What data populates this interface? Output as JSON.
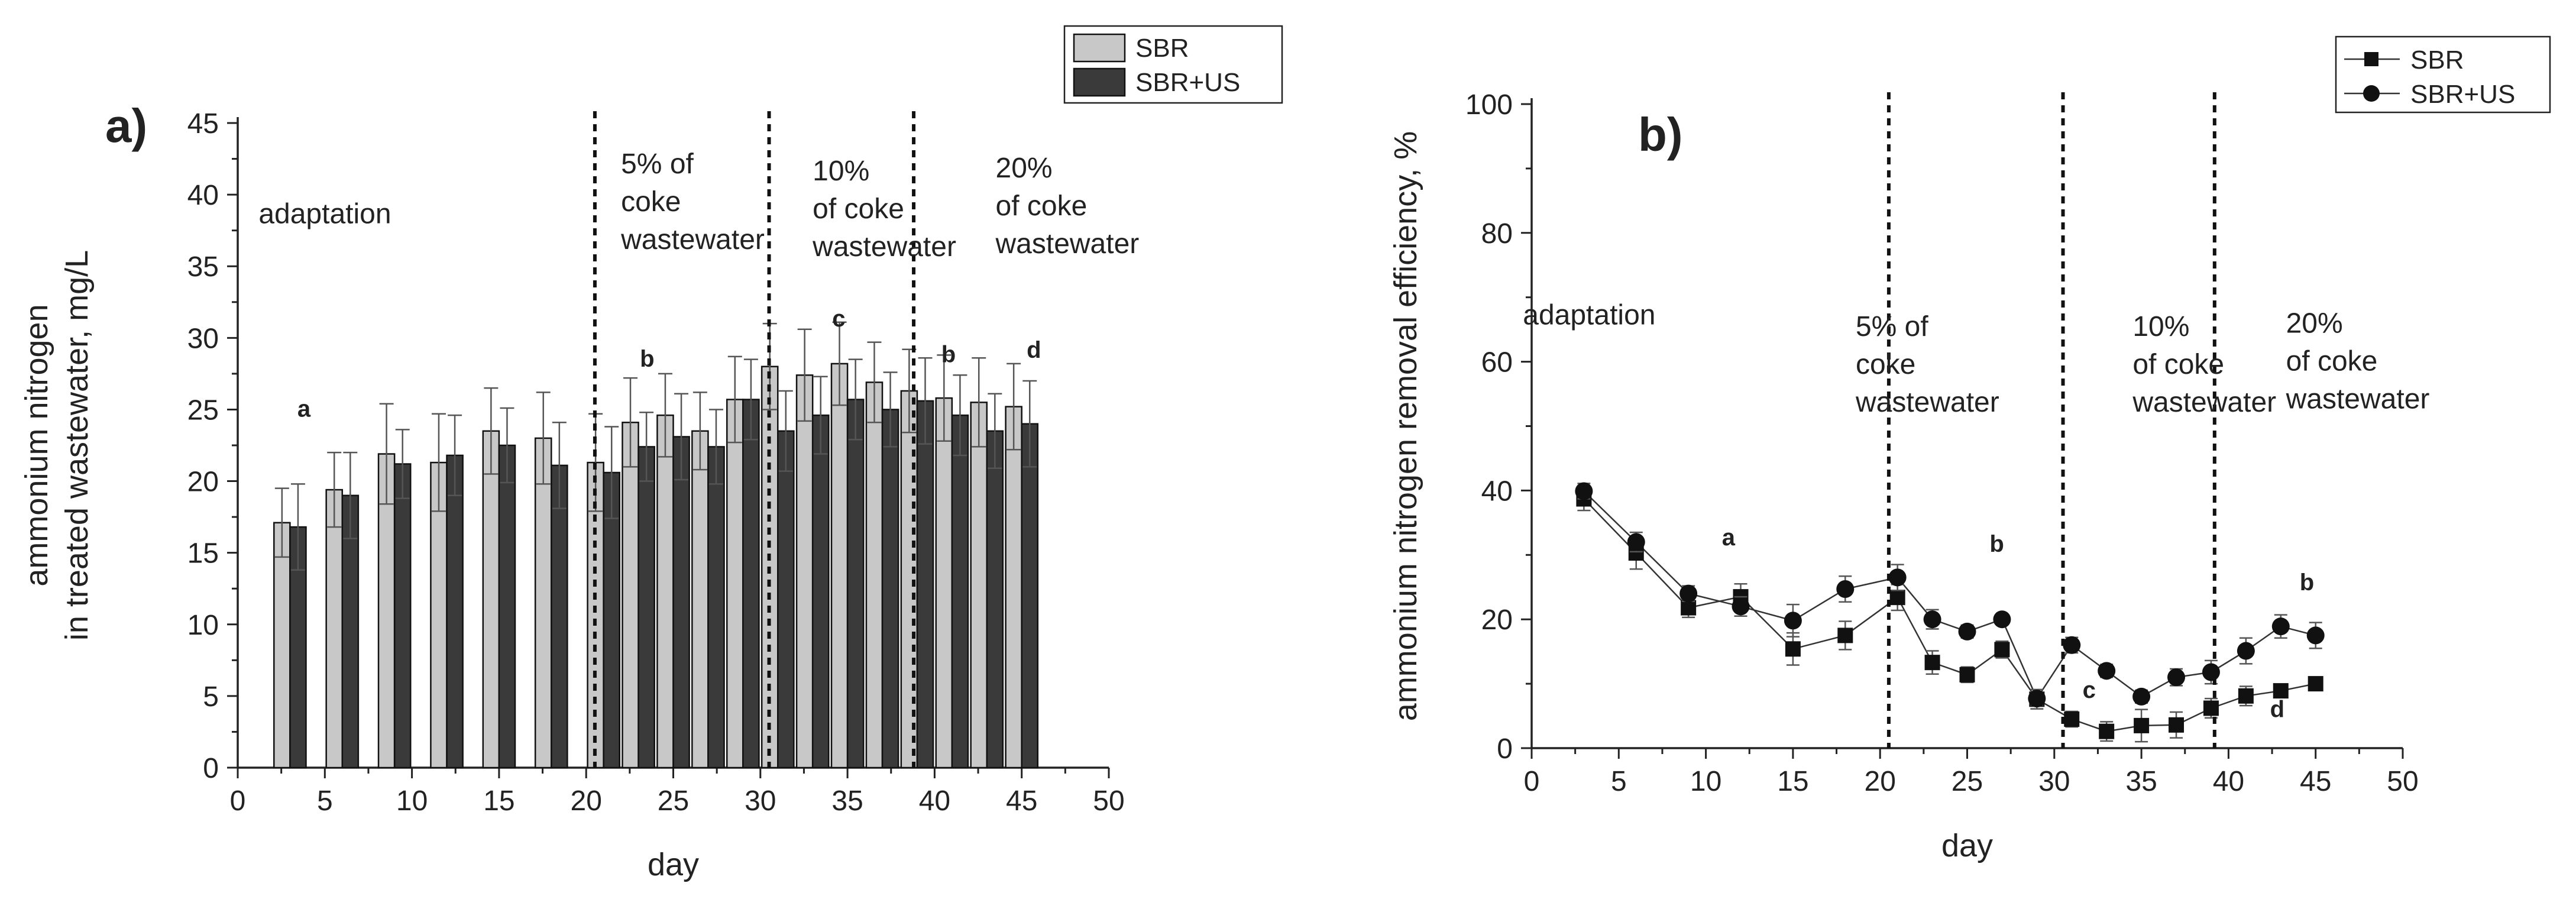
{
  "colors": {
    "sbr_bar": "#c8c8c8",
    "sbrus_bar": "#3a3a3a",
    "axis": "#222222"
  },
  "chart_data": [
    {
      "id": "a",
      "panel_label": "a)",
      "type": "bar",
      "xlabel": "day",
      "ylabel_line1": "ammonium nitrogen",
      "ylabel_line2": "in treated wastewater, mg/L",
      "xlim": [
        0,
        50
      ],
      "ylim": [
        0,
        45
      ],
      "xticks": [
        0,
        5,
        10,
        15,
        20,
        25,
        30,
        35,
        40,
        45,
        50
      ],
      "yticks": [
        0,
        5,
        10,
        15,
        20,
        25,
        30,
        35,
        40,
        45
      ],
      "x": [
        3,
        6,
        9,
        12,
        15,
        18,
        21,
        23,
        25,
        27,
        29,
        31,
        33,
        35,
        37,
        39,
        41,
        43,
        45
      ],
      "series": [
        {
          "name": "SBR",
          "values": [
            17.1,
            19.4,
            21.9,
            21.3,
            23.5,
            23.0,
            21.3,
            24.1,
            24.6,
            23.5,
            25.7,
            28.0,
            27.4,
            28.2,
            26.9,
            26.3,
            25.8,
            25.5,
            25.2
          ],
          "errors": [
            2.4,
            2.6,
            3.5,
            3.4,
            3.0,
            3.2,
            3.4,
            3.1,
            2.9,
            2.7,
            3.0,
            3.0,
            3.2,
            2.9,
            2.8,
            2.9,
            3.0,
            3.1,
            3.0
          ]
        },
        {
          "name": "SBR+US",
          "values": [
            16.8,
            19.0,
            21.2,
            21.8,
            22.5,
            21.1,
            20.6,
            22.4,
            23.1,
            22.4,
            25.7,
            23.5,
            24.6,
            25.7,
            25.0,
            25.6,
            24.6,
            23.5,
            24.0
          ],
          "errors": [
            3.0,
            3.0,
            2.4,
            2.8,
            2.6,
            3.0,
            3.2,
            2.4,
            3.0,
            2.6,
            2.8,
            2.8,
            2.7,
            2.8,
            2.6,
            3.0,
            2.8,
            2.6,
            3.0
          ]
        }
      ],
      "dividers": [
        20.5,
        30.5,
        38.8
      ],
      "annotations": [
        {
          "lines": [
            "adaptation"
          ],
          "x": 1.2,
          "y": 38.0
        },
        {
          "lines": [
            "5% of",
            "coke",
            "wastewater"
          ],
          "x": 22.0,
          "y": 41.5
        },
        {
          "lines": [
            "10%",
            "of coke",
            "wastewater"
          ],
          "x": 33.0,
          "y": 41.0
        },
        {
          "lines": [
            "20%",
            "of coke",
            "wastewater"
          ],
          "x": 43.5,
          "y": 41.2
        }
      ],
      "letters": [
        {
          "text": "a",
          "x": 3.8,
          "y": 24.5
        },
        {
          "text": "b",
          "x": 23.5,
          "y": 28.0
        },
        {
          "text": "c",
          "x": 34.5,
          "y": 30.8
        },
        {
          "text": "b",
          "x": 40.8,
          "y": 28.3
        },
        {
          "text": "d",
          "x": 45.7,
          "y": 28.6
        }
      ],
      "legend": {
        "placement": "top-right",
        "entries": [
          "SBR",
          "SBR+US"
        ]
      }
    },
    {
      "id": "b",
      "panel_label": "b)",
      "type": "line",
      "xlabel": "day",
      "ylabel_line1": "ammonium nitrogen removal efficiency, %",
      "xlim": [
        0,
        50
      ],
      "ylim": [
        0,
        100
      ],
      "xticks": [
        0,
        5,
        10,
        15,
        20,
        25,
        30,
        35,
        40,
        45,
        50
      ],
      "yticks": [
        0,
        20,
        40,
        60,
        80,
        100
      ],
      "x": [
        3,
        6,
        9,
        12,
        15,
        18,
        21,
        23,
        25,
        27,
        29,
        31,
        33,
        35,
        37,
        39,
        41,
        43,
        45
      ],
      "series": [
        {
          "name": "SBR",
          "marker": "square",
          "values": [
            38.7,
            30.3,
            21.8,
            23.5,
            15.4,
            17.5,
            23.4,
            13.3,
            11.4,
            15.3,
            7.6,
            4.5,
            2.6,
            3.5,
            3.6,
            6.2,
            8.1,
            8.9,
            10.0
          ],
          "errors": [
            1.8,
            2.5,
            1.5,
            2.0,
            2.5,
            2.2,
            2.0,
            1.8,
            1.2,
            1.3,
            1.5,
            1.2,
            1.5,
            2.5,
            2.0,
            1.5,
            1.5,
            1.0,
            1.0
          ]
        },
        {
          "name": "SBR+US",
          "marker": "circle",
          "values": [
            39.9,
            32.0,
            24.0,
            22.0,
            19.8,
            24.7,
            26.5,
            20.0,
            18.1,
            20.0,
            7.7,
            16.0,
            12.0,
            8.0,
            11.0,
            11.8,
            15.1,
            18.9,
            17.5
          ],
          "errors": [
            1.2,
            1.5,
            1.2,
            1.5,
            2.5,
            2.0,
            2.0,
            1.5,
            1.0,
            0.8,
            1.0,
            1.2,
            1.0,
            1.0,
            1.3,
            1.8,
            2.0,
            1.8,
            2.0
          ]
        }
      ],
      "dividers": [
        20.5,
        30.5,
        39.2
      ],
      "annotations": [
        {
          "lines": [
            "adaptation"
          ],
          "x": -0.5,
          "y": 65.8
        },
        {
          "lines": [
            "5% of",
            "coke",
            "wastewater"
          ],
          "x": 18.6,
          "y": 64.0
        },
        {
          "lines": [
            "10%",
            "of coke",
            "wastewater"
          ],
          "x": 34.5,
          "y": 64.0
        },
        {
          "lines": [
            "20%",
            "of coke",
            "wastewater"
          ],
          "x": 43.3,
          "y": 64.5
        }
      ],
      "letters": [
        {
          "text": "a",
          "x": 11.3,
          "y": 31.5
        },
        {
          "text": "b",
          "x": 26.7,
          "y": 30.5
        },
        {
          "text": "c",
          "x": 32.0,
          "y": 7.8
        },
        {
          "text": "b",
          "x": 44.5,
          "y": 24.5
        },
        {
          "text": "d",
          "x": 42.8,
          "y": 4.8
        }
      ],
      "legend": {
        "placement": "top-right",
        "entries": [
          "SBR",
          "SBR+US"
        ]
      }
    }
  ]
}
